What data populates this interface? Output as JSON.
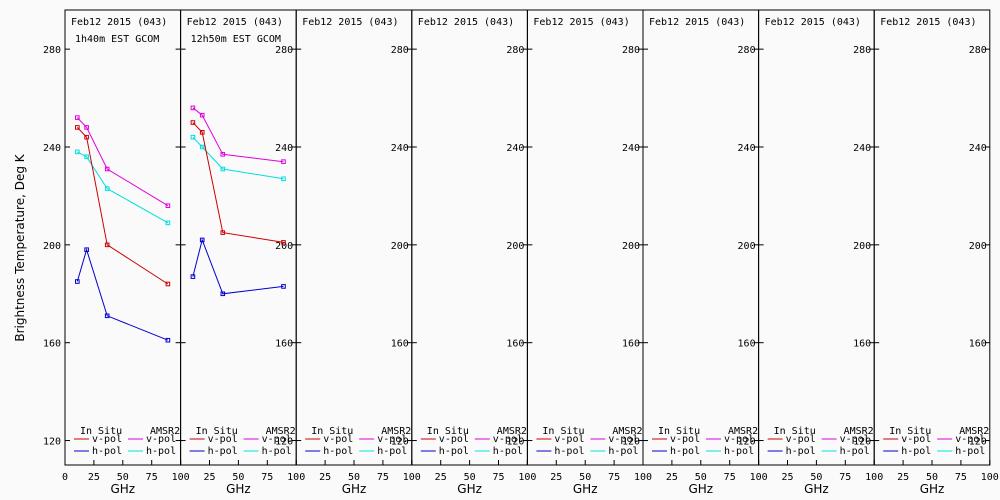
{
  "chart_data": {
    "type": "line",
    "ylabel": "Brightness Temperature, Deg K",
    "xlabel": "GHz",
    "xlim": [
      0,
      100
    ],
    "ylim": [
      110,
      296
    ],
    "x_ticks": [
      "0",
      "25",
      "50",
      "75",
      "100"
    ],
    "y_ticks": [
      120,
      160,
      200,
      240,
      280
    ],
    "colors": {
      "v_pol_insitu": "#cc0000",
      "h_pol_insitu": "#0000cc",
      "v_pol_amsr2": "#e000e0",
      "h_pol_amsr2": "#00e0e0"
    },
    "legend": {
      "col1": "In Situ",
      "col2": "AMSR2",
      "v": "v-pol",
      "h": "h-pol"
    },
    "panels": [
      {
        "title": "Feb12 2015 (043)",
        "subtitle": "1h40m EST GCOM",
        "series": [
          {
            "key": "v_pol_amsr2",
            "x": [
              10.65,
              18.7,
              36.5,
              89
            ],
            "y": [
              252,
              248,
              231,
              216
            ]
          },
          {
            "key": "h_pol_amsr2",
            "x": [
              10.65,
              18.7,
              36.5,
              89
            ],
            "y": [
              238,
              236,
              223,
              209
            ]
          },
          {
            "key": "v_pol_insitu",
            "x": [
              10.65,
              18.7,
              36.5,
              89
            ],
            "y": [
              248,
              244,
              200,
              184
            ]
          },
          {
            "key": "h_pol_insitu",
            "x": [
              10.65,
              18.7,
              36.5,
              89
            ],
            "y": [
              185,
              198,
              171,
              161
            ]
          }
        ]
      },
      {
        "title": "Feb12 2015 (043)",
        "subtitle": "12h50m EST GCOM",
        "series": [
          {
            "key": "v_pol_amsr2",
            "x": [
              10.65,
              18.7,
              36.5,
              89
            ],
            "y": [
              256,
              253,
              237,
              234
            ]
          },
          {
            "key": "h_pol_amsr2",
            "x": [
              10.65,
              18.7,
              36.5,
              89
            ],
            "y": [
              244,
              240,
              231,
              227
            ]
          },
          {
            "key": "v_pol_insitu",
            "x": [
              10.65,
              18.7,
              36.5,
              89
            ],
            "y": [
              250,
              246,
              205,
              201
            ]
          },
          {
            "key": "h_pol_insitu",
            "x": [
              10.65,
              18.7,
              36.5,
              89
            ],
            "y": [
              187,
              202,
              180,
              183
            ]
          }
        ]
      },
      {
        "title": "Feb12 2015 (043)",
        "subtitle": "",
        "series": []
      },
      {
        "title": "Feb12 2015 (043)",
        "subtitle": "",
        "series": []
      },
      {
        "title": "Feb12 2015 (043)",
        "subtitle": "",
        "series": []
      },
      {
        "title": "Feb12 2015 (043)",
        "subtitle": "",
        "series": []
      },
      {
        "title": "Feb12 2015 (043)",
        "subtitle": "",
        "series": []
      },
      {
        "title": "Feb12 2015 (043)",
        "subtitle": "",
        "series": []
      }
    ]
  }
}
